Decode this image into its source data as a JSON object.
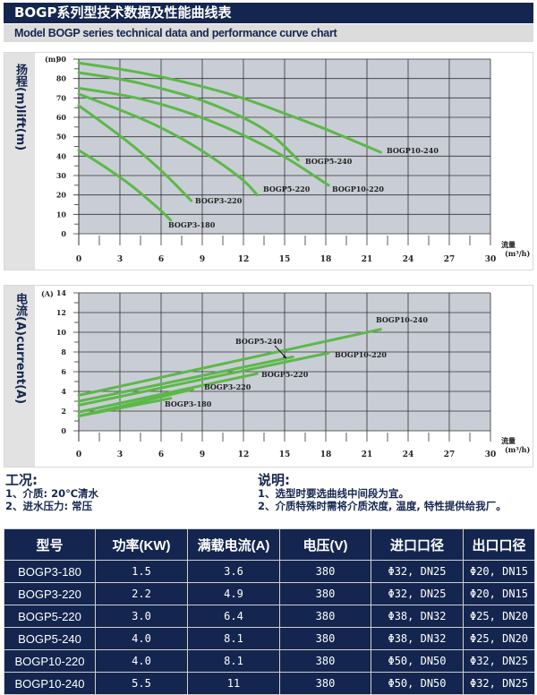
{
  "header": {
    "title": "BOGP系列型技术数据及性能曲线表",
    "subtitle": "Model BOGP series technical data and performance curve chart"
  },
  "colors": {
    "navy": "#14264f",
    "plot_bg": "#c9ced6",
    "curve": "#5cb848"
  },
  "chart_data": [
    {
      "type": "line",
      "ylabel_cn": "扬程(m)",
      "ylabel_en": "lift(m)",
      "y_unit": "(m)",
      "xlabel_cn": "流量",
      "xlabel_unit": "(m³/h)",
      "xlim": [
        0,
        30
      ],
      "ylim": [
        0,
        90
      ],
      "xticks": [
        0,
        3,
        6,
        9,
        12,
        15,
        18,
        21,
        24,
        27,
        30
      ],
      "yticks": [
        0,
        10,
        20,
        30,
        40,
        50,
        60,
        70,
        80,
        90
      ],
      "grid": true,
      "series": [
        {
          "name": "BOGP10-240",
          "x": [
            0,
            3,
            6,
            9,
            12,
            15,
            18,
            21,
            22
          ],
          "y": [
            88,
            85,
            81,
            76,
            70,
            62,
            54,
            45,
            42
          ]
        },
        {
          "name": "BOGP5-240",
          "x": [
            0,
            3,
            6,
            9,
            12,
            14,
            16
          ],
          "y": [
            83,
            80,
            75,
            69,
            60,
            52,
            38
          ]
        },
        {
          "name": "BOGP10-220",
          "x": [
            0,
            3,
            6,
            9,
            12,
            15,
            18.2
          ],
          "y": [
            75,
            72,
            67,
            60,
            51,
            40,
            25
          ]
        },
        {
          "name": "BOGP5-220",
          "x": [
            0,
            3,
            6,
            9,
            12,
            13
          ],
          "y": [
            72,
            64,
            55,
            43,
            28,
            20
          ]
        },
        {
          "name": "BOGP3-220",
          "x": [
            0,
            3,
            6,
            8.2
          ],
          "y": [
            66,
            51,
            33,
            17
          ]
        },
        {
          "name": "BOGP3-180",
          "x": [
            0,
            3,
            6,
            6.7
          ],
          "y": [
            43,
            30,
            12,
            7
          ]
        }
      ]
    },
    {
      "type": "line",
      "ylabel_cn": "电流(A)",
      "ylabel_en": "current(A)",
      "y_unit": "(A)",
      "xlabel_cn": "流量",
      "xlabel_unit": "(m³/h)",
      "xlim": [
        0,
        30
      ],
      "ylim": [
        0,
        14
      ],
      "xticks": [
        0,
        3,
        6,
        9,
        12,
        15,
        18,
        21,
        24,
        27,
        30
      ],
      "yticks": [
        0,
        2,
        4,
        6,
        8,
        10,
        12,
        14
      ],
      "grid": true,
      "series": [
        {
          "name": "BOGP10-240",
          "x": [
            0,
            22
          ],
          "y": [
            3.6,
            10.3
          ]
        },
        {
          "name": "BOGP5-240",
          "x": [
            0,
            15.6
          ],
          "y": [
            3.0,
            7.5
          ]
        },
        {
          "name": "BOGP10-220",
          "x": [
            0,
            18.2
          ],
          "y": [
            2.6,
            7.9
          ]
        },
        {
          "name": "BOGP5-220",
          "x": [
            0,
            13
          ],
          "y": [
            1.9,
            5.8
          ]
        },
        {
          "name": "BOGP3-220",
          "x": [
            0,
            8.3
          ],
          "y": [
            1.5,
            4.2
          ]
        },
        {
          "name": "BOGP3-180",
          "x": [
            0,
            6.7
          ],
          "y": [
            1.5,
            3.3
          ]
        }
      ]
    }
  ],
  "conditions": {
    "title": "工况:",
    "items": [
      "1、介质: 20℃清水",
      "2、进水压力: 常压"
    ]
  },
  "notes": {
    "title": "说明:",
    "items": [
      "1、选型时要选曲线中间段为宜。",
      "2、介质特殊时需将介质浓度, 温度, 特性提供给我厂。"
    ]
  },
  "table": {
    "headers": [
      "型号",
      "功率(KW)",
      "满载电流(A)",
      "电压(V)",
      "进口口径",
      "出口口径"
    ],
    "rows": [
      [
        "BOGP3-180",
        "1.5",
        "3.6",
        "380",
        "Φ32, DN25",
        "Φ20, DN15"
      ],
      [
        "BOGP3-220",
        "2.2",
        "4.9",
        "380",
        "Φ32, DN25",
        "Φ20, DN15"
      ],
      [
        "BOGP5-220",
        "3.0",
        "6.4",
        "380",
        "Φ38, DN32",
        "Φ25, DN20"
      ],
      [
        "BOGP5-240",
        "4.0",
        "8.1",
        "380",
        "Φ38, DN32",
        "Φ25, DN20"
      ],
      [
        "BOGP10-220",
        "4.0",
        "8.1",
        "380",
        "Φ50, DN50",
        "Φ32, DN25"
      ],
      [
        "BOGP10-240",
        "5.5",
        "11",
        "380",
        "Φ50, DN50",
        "Φ32, DN25"
      ]
    ]
  }
}
